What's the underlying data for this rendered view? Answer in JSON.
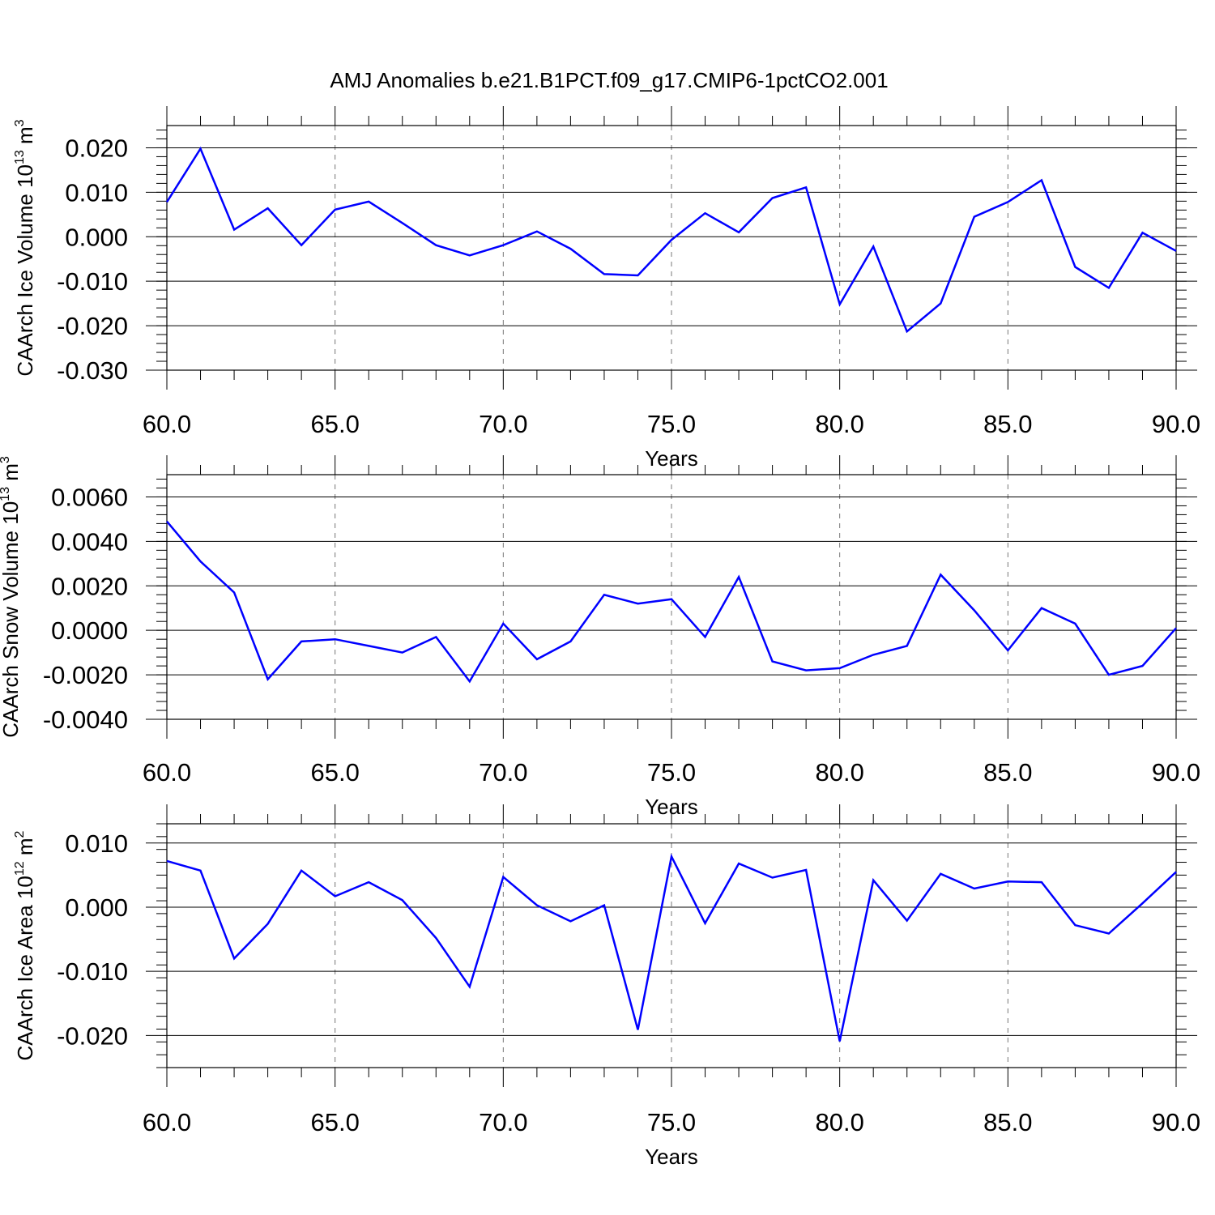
{
  "title": "AMJ Anomalies b.e21.B1PCT.f09_g17.CMIP6-1pctCO2.001",
  "chart_data": [
    {
      "type": "line",
      "ylabel": {
        "main": "CAArch Ice Volume 10",
        "exp": "13",
        "unit": " m",
        "unit_exp": "3"
      },
      "xlabel": "Years",
      "xlim": [
        60,
        90
      ],
      "ylim": [
        -0.03,
        0.025
      ],
      "xticks": [
        60,
        65,
        70,
        75,
        80,
        85,
        90
      ],
      "xtick_labels": [
        "60.0",
        "65.0",
        "70.0",
        "75.0",
        "80.0",
        "85.0",
        "90.0"
      ],
      "yticks": [
        0.02,
        0.01,
        0.0,
        -0.01,
        -0.02,
        -0.03
      ],
      "ytick_labels": [
        "0.020",
        "0.010",
        "0.000",
        "-0.010",
        "-0.020",
        "-0.030"
      ],
      "yminor_step": 0.002,
      "grid": "x-dashed",
      "color": "#0000ff",
      "x": [
        60,
        61,
        62,
        63,
        64,
        65,
        66,
        67,
        68,
        69,
        70,
        71,
        72,
        73,
        74,
        75,
        76,
        77,
        78,
        79,
        80,
        81,
        82,
        83,
        84,
        85,
        86,
        87,
        88,
        89,
        90
      ],
      "values": [
        0.0078,
        0.0198,
        0.0016,
        0.0064,
        -0.0019,
        0.0061,
        0.0079,
        0.0031,
        -0.0019,
        -0.0042,
        -0.0019,
        0.0012,
        -0.0027,
        -0.0084,
        -0.0087,
        -0.0007,
        0.0053,
        0.001,
        0.0087,
        0.0111,
        -0.0152,
        -0.0022,
        -0.0213,
        -0.015,
        0.0045,
        0.0078,
        0.0127,
        -0.0068,
        -0.0115,
        0.0009,
        -0.0032
      ]
    },
    {
      "type": "line",
      "ylabel": {
        "main": "CAArch Snow Volume 10",
        "exp": "13",
        "unit": " m",
        "unit_exp": "3"
      },
      "xlabel": "Years",
      "xlim": [
        60,
        90
      ],
      "ylim": [
        -0.004,
        0.007
      ],
      "xticks": [
        60,
        65,
        70,
        75,
        80,
        85,
        90
      ],
      "xtick_labels": [
        "60.0",
        "65.0",
        "70.0",
        "75.0",
        "80.0",
        "85.0",
        "90.0"
      ],
      "yticks": [
        0.006,
        0.004,
        0.002,
        0.0,
        -0.002,
        -0.004
      ],
      "ytick_labels": [
        "0.0060",
        "0.0040",
        "0.0020",
        "0.0000",
        "-0.0020",
        "-0.0040"
      ],
      "yminor_step": 0.0004,
      "grid": "x-dashed",
      "color": "#0000ff",
      "x": [
        60,
        61,
        62,
        63,
        64,
        65,
        66,
        67,
        68,
        69,
        70,
        71,
        72,
        73,
        74,
        75,
        76,
        77,
        78,
        79,
        80,
        81,
        82,
        83,
        84,
        85,
        86,
        87,
        88,
        89,
        90
      ],
      "values": [
        0.0049,
        0.0031,
        0.0017,
        -0.0022,
        -0.0005,
        -0.0004,
        -0.0007,
        -0.001,
        -0.0003,
        -0.0023,
        0.0003,
        -0.0013,
        -0.0005,
        0.0016,
        0.0012,
        0.0014,
        -0.0003,
        0.0024,
        -0.0014,
        -0.0018,
        -0.0017,
        -0.0011,
        -0.0007,
        0.0025,
        0.0009,
        -0.0009,
        0.001,
        0.0003,
        -0.002,
        -0.0016,
        0.0001
      ]
    },
    {
      "type": "line",
      "ylabel": {
        "main": "CAArch Ice Area 10",
        "exp": "12",
        "unit": " m",
        "unit_exp": "2"
      },
      "xlabel": "Years",
      "xlim": [
        60,
        90
      ],
      "ylim": [
        -0.025,
        0.013
      ],
      "xticks": [
        60,
        65,
        70,
        75,
        80,
        85,
        90
      ],
      "xtick_labels": [
        "60.0",
        "65.0",
        "70.0",
        "75.0",
        "80.0",
        "85.0",
        "90.0"
      ],
      "yticks": [
        0.01,
        0.0,
        -0.01,
        -0.02
      ],
      "ytick_labels": [
        "0.010",
        "0.000",
        "-0.010",
        "-0.020"
      ],
      "yminor_step": 0.002,
      "grid": "x-dashed",
      "color": "#0000ff",
      "x": [
        60,
        61,
        62,
        63,
        64,
        65,
        66,
        67,
        68,
        69,
        70,
        71,
        72,
        73,
        74,
        75,
        76,
        77,
        78,
        79,
        80,
        81,
        82,
        83,
        84,
        85,
        86,
        87,
        88,
        89,
        90
      ],
      "values": [
        0.0072,
        0.0057,
        -0.008,
        -0.0026,
        0.0057,
        0.0017,
        0.0039,
        0.0011,
        -0.0048,
        -0.0124,
        0.0047,
        0.0003,
        -0.0022,
        0.0003,
        -0.0191,
        0.0079,
        -0.0025,
        0.0068,
        0.0046,
        0.0058,
        -0.0209,
        0.0042,
        -0.0021,
        0.0052,
        0.0029,
        0.004,
        0.0039,
        -0.0028,
        -0.0041,
        0.0006,
        0.0055
      ]
    }
  ]
}
